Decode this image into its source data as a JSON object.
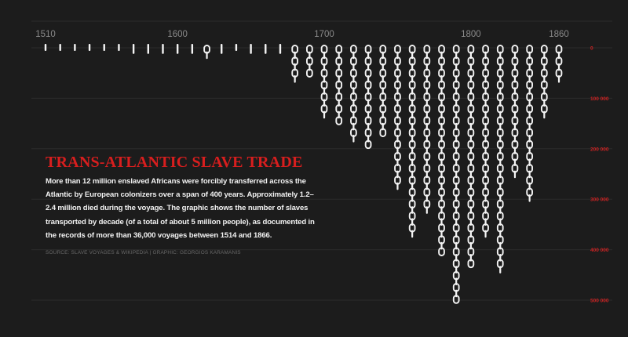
{
  "title": "TRANS-ATLANTIC SLAVE TRADE",
  "description": "More than 12 million enslaved Africans were forcibly transferred across the Atlantic by European colonizers over a span of 400 years. Approximately 1.2–2.4 million died during the voyage. The graphic shows the number of slaves transported by decade (of a total of about 5 million people), as documented in the records of more than 36,000 voyages between 1514 and 1866.",
  "source": "SOURCE: SLAVE VOYAGES & WIKIPEDIA | GRAPHIC: GEORGIOS KARAMANIS",
  "colors": {
    "background": "#1c1c1c",
    "chain": "#f4f4f4",
    "title": "#d81e1e",
    "y_tick_labels": "#cc2222",
    "x_tick_labels": "#8a8a8a",
    "gridlines": "#2b2b2b"
  },
  "chart_data": {
    "type": "bar",
    "orientation": "vertical-downward",
    "mark": "chain",
    "x_ticks": [
      1510,
      1600,
      1700,
      1800,
      1860
    ],
    "y_ticks": [
      {
        "value": 0,
        "label": "0"
      },
      {
        "value": 100000,
        "label": "100 000"
      },
      {
        "value": 200000,
        "label": "200 000"
      },
      {
        "value": 300000,
        "label": "300 000"
      },
      {
        "value": 400000,
        "label": "400 000"
      },
      {
        "value": 500000,
        "label": "500 000"
      }
    ],
    "ylim": [
      0,
      520000
    ],
    "grid": true,
    "decades": [
      1510,
      1520,
      1530,
      1540,
      1550,
      1560,
      1570,
      1580,
      1590,
      1600,
      1610,
      1620,
      1630,
      1640,
      1650,
      1660,
      1670,
      1680,
      1690,
      1700,
      1710,
      1720,
      1730,
      1740,
      1750,
      1760,
      1770,
      1780,
      1790,
      1800,
      1810,
      1820,
      1830,
      1840,
      1850,
      1860
    ],
    "values": [
      3000,
      3000,
      3000,
      3000,
      3000,
      3000,
      12000,
      12000,
      12000,
      12000,
      12000,
      25000,
      12000,
      5000,
      12000,
      12000,
      12000,
      75000,
      65000,
      140000,
      160000,
      190000,
      200000,
      185000,
      290000,
      380000,
      330000,
      420000,
      510000,
      445000,
      375000,
      455000,
      260000,
      305000,
      150000,
      75000
    ]
  }
}
